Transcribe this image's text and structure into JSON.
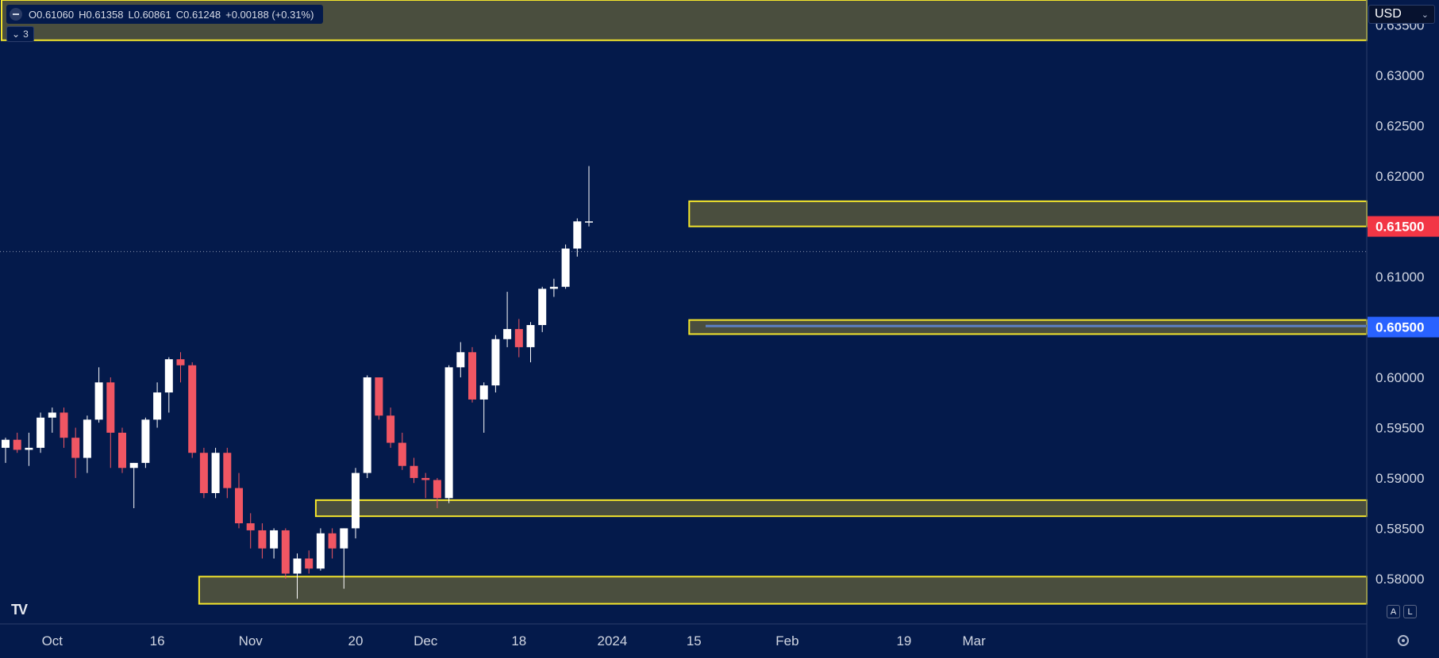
{
  "header": {
    "open": "O0.61060",
    "high": "H0.61358",
    "low": "L0.60861",
    "close": "C0.61248",
    "change": "+0.00188 (+0.31%)",
    "indicator_count": "3"
  },
  "currency": "USD",
  "scale_buttons": {
    "auto": "A",
    "log": "L"
  },
  "colors": {
    "background": "#041a4b",
    "up_candle": "#ffffff",
    "down_candle": "#f05663",
    "zone_fill": "#4a4e3e",
    "zone_border": "#f5e62c",
    "resistance_label": "#f23645",
    "support_label": "#2962ff",
    "support_line": "#5b7fc4"
  },
  "chart_data": {
    "type": "candlestick",
    "y_axis": {
      "min": 0.5755,
      "max": 0.6375,
      "ticks": [
        "0.63500",
        "0.63000",
        "0.62500",
        "0.62000",
        "0.61500",
        "0.61000",
        "0.60500",
        "0.60000",
        "0.59500",
        "0.59000",
        "0.58500",
        "0.58000"
      ]
    },
    "x_axis": {
      "labels": [
        {
          "text": "Oct",
          "index": 4
        },
        {
          "text": "16",
          "index": 13
        },
        {
          "text": "Nov",
          "index": 21
        },
        {
          "text": "20",
          "index": 30
        },
        {
          "text": "Dec",
          "index": 36
        },
        {
          "text": "18",
          "index": 44
        },
        {
          "text": "2024",
          "index": 52
        },
        {
          "text": "15",
          "index": 59
        },
        {
          "text": "Feb",
          "index": 67
        },
        {
          "text": "19",
          "index": 77
        },
        {
          "text": "Mar",
          "index": 83
        }
      ]
    },
    "price_labels": [
      {
        "text": "0.61500",
        "kind": "resistance"
      },
      {
        "text": "0.60500",
        "kind": "support"
      }
    ],
    "current_price": 0.6125,
    "support_line": {
      "price": 0.6051,
      "from_index": 60,
      "to_index": 85
    },
    "zones": [
      {
        "top": 0.6375,
        "bottom": 0.6335,
        "from_index": 0
      },
      {
        "top": 0.6175,
        "bottom": 0.615,
        "from_index": 59
      },
      {
        "top": 0.6057,
        "bottom": 0.6043,
        "from_index": 59
      },
      {
        "top": 0.5878,
        "bottom": 0.5862,
        "from_index": 27
      },
      {
        "top": 0.5802,
        "bottom": 0.5775,
        "from_index": 17
      }
    ],
    "candles": [
      [
        0.593,
        0.594,
        0.5915,
        0.5938
      ],
      [
        0.5938,
        0.5945,
        0.5925,
        0.5928
      ],
      [
        0.5928,
        0.5945,
        0.5912,
        0.593
      ],
      [
        0.593,
        0.5965,
        0.5925,
        0.596
      ],
      [
        0.596,
        0.597,
        0.5945,
        0.5965
      ],
      [
        0.5965,
        0.597,
        0.593,
        0.594
      ],
      [
        0.594,
        0.595,
        0.59,
        0.592
      ],
      [
        0.592,
        0.5962,
        0.5905,
        0.5958
      ],
      [
        0.5958,
        0.601,
        0.5955,
        0.5995
      ],
      [
        0.5995,
        0.6,
        0.591,
        0.5945
      ],
      [
        0.5945,
        0.595,
        0.5905,
        0.591
      ],
      [
        0.591,
        0.5915,
        0.587,
        0.5915
      ],
      [
        0.5915,
        0.596,
        0.591,
        0.5958
      ],
      [
        0.5958,
        0.5995,
        0.595,
        0.5985
      ],
      [
        0.5985,
        0.602,
        0.5965,
        0.6018
      ],
      [
        0.6018,
        0.6025,
        0.5995,
        0.6012
      ],
      [
        0.6012,
        0.6015,
        0.592,
        0.5925
      ],
      [
        0.5925,
        0.593,
        0.588,
        0.5885
      ],
      [
        0.5885,
        0.593,
        0.588,
        0.5925
      ],
      [
        0.5925,
        0.593,
        0.588,
        0.589
      ],
      [
        0.589,
        0.5905,
        0.585,
        0.5855
      ],
      [
        0.5855,
        0.5865,
        0.583,
        0.5848
      ],
      [
        0.5848,
        0.5855,
        0.582,
        0.583
      ],
      [
        0.583,
        0.585,
        0.582,
        0.5848
      ],
      [
        0.5848,
        0.585,
        0.58,
        0.5805
      ],
      [
        0.5805,
        0.5825,
        0.578,
        0.582
      ],
      [
        0.582,
        0.5828,
        0.5805,
        0.581
      ],
      [
        0.581,
        0.585,
        0.5808,
        0.5845
      ],
      [
        0.5845,
        0.585,
        0.582,
        0.583
      ],
      [
        0.583,
        0.585,
        0.579,
        0.585
      ],
      [
        0.585,
        0.591,
        0.584,
        0.5905
      ],
      [
        0.5905,
        0.6002,
        0.59,
        0.6
      ],
      [
        0.6,
        0.6,
        0.5958,
        0.5962
      ],
      [
        0.5962,
        0.597,
        0.593,
        0.5935
      ],
      [
        0.5935,
        0.5945,
        0.5908,
        0.5912
      ],
      [
        0.5912,
        0.592,
        0.5895,
        0.59
      ],
      [
        0.59,
        0.5905,
        0.588,
        0.5898
      ],
      [
        0.5898,
        0.59,
        0.587,
        0.588
      ],
      [
        0.588,
        0.6012,
        0.5875,
        0.601
      ],
      [
        0.601,
        0.6035,
        0.6,
        0.6025
      ],
      [
        0.6025,
        0.603,
        0.5975,
        0.5978
      ],
      [
        0.5978,
        0.5995,
        0.5945,
        0.5992
      ],
      [
        0.5992,
        0.6042,
        0.5985,
        0.6038
      ],
      [
        0.6038,
        0.6085,
        0.603,
        0.6048
      ],
      [
        0.6048,
        0.6058,
        0.602,
        0.603
      ],
      [
        0.603,
        0.6055,
        0.6015,
        0.6052
      ],
      [
        0.6052,
        0.609,
        0.6045,
        0.6088
      ],
      [
        0.6088,
        0.6098,
        0.608,
        0.609
      ],
      [
        0.609,
        0.6132,
        0.6088,
        0.6128
      ],
      [
        0.6128,
        0.6158,
        0.612,
        0.6155
      ],
      [
        0.6155,
        0.621,
        0.615,
        0.6155
      ]
    ]
  }
}
